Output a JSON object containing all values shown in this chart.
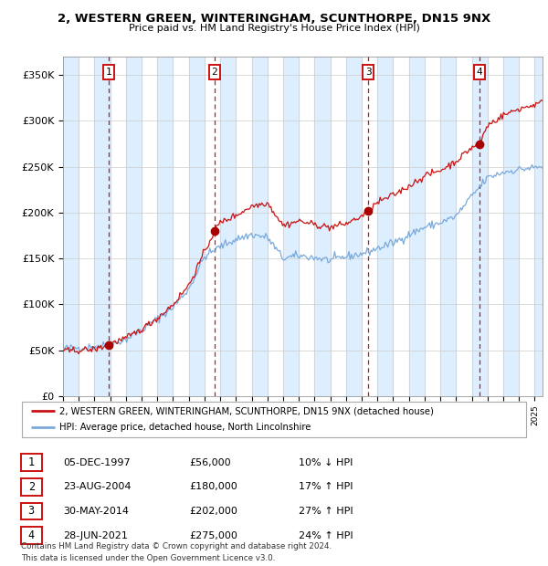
{
  "title_line1": "2, WESTERN GREEN, WINTERINGHAM, SCUNTHORPE, DN15 9NX",
  "title_line2": "Price paid vs. HM Land Registry's House Price Index (HPI)",
  "hpi_color": "#7aaadd",
  "price_color": "#cc1111",
  "dot_color": "#aa0000",
  "plot_bg_color": "#ffffff",
  "grid_color": "#cccccc",
  "vline_color": "#cc1111",
  "ylim": [
    0,
    370000
  ],
  "yticks": [
    0,
    50000,
    100000,
    150000,
    200000,
    250000,
    300000,
    350000
  ],
  "ytick_labels": [
    "£0",
    "£50K",
    "£100K",
    "£150K",
    "£200K",
    "£250K",
    "£300K",
    "£350K"
  ],
  "xstart": 1995.0,
  "xend": 2025.5,
  "sale_dates": [
    1997.92,
    2004.64,
    2014.41,
    2021.49
  ],
  "sale_prices": [
    56000,
    180000,
    202000,
    275000
  ],
  "sale_labels": [
    "1",
    "2",
    "3",
    "4"
  ],
  "legend_line1": "2, WESTERN GREEN, WINTERINGHAM, SCUNTHORPE, DN15 9NX (detached house)",
  "legend_line2": "HPI: Average price, detached house, North Lincolnshire",
  "table_rows": [
    [
      "1",
      "05-DEC-1997",
      "£56,000",
      "10% ↓ HPI"
    ],
    [
      "2",
      "23-AUG-2004",
      "£180,000",
      "17% ↑ HPI"
    ],
    [
      "3",
      "30-MAY-2014",
      "£202,000",
      "27% ↑ HPI"
    ],
    [
      "4",
      "28-JUN-2021",
      "£275,000",
      "24% ↑ HPI"
    ]
  ],
  "footnote": "Contains HM Land Registry data © Crown copyright and database right 2024.\nThis data is licensed under the Open Government Licence v3.0."
}
